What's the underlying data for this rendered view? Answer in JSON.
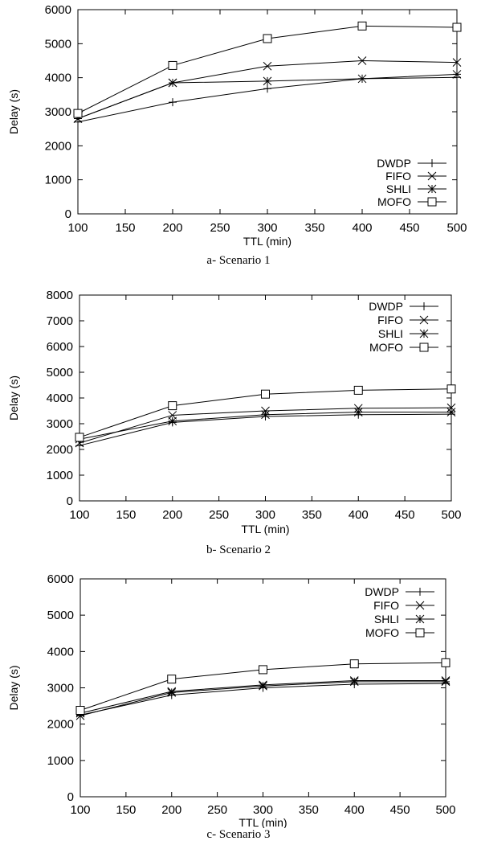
{
  "chart_data": [
    {
      "type": "line",
      "caption": "a- Scenario 1",
      "xlabel": "TTL (min)",
      "ylabel": "Delay (s)",
      "xlim": [
        100,
        500
      ],
      "ylim": [
        0,
        6000
      ],
      "xticks": [
        "100",
        "150",
        "200",
        "250",
        "300",
        "350",
        "400",
        "450",
        "500"
      ],
      "yticks": [
        "0",
        "1000",
        "2000",
        "3000",
        "4000",
        "5000",
        "6000"
      ],
      "legend_position": "bottom-right",
      "x": [
        100,
        200,
        300,
        400,
        500
      ],
      "series": [
        {
          "name": "DWDP",
          "marker": "plus",
          "values": [
            2700,
            3280,
            3680,
            3970,
            4010
          ]
        },
        {
          "name": "FIFO",
          "marker": "x",
          "values": [
            2800,
            3850,
            4340,
            4500,
            4450
          ]
        },
        {
          "name": "SHLI",
          "marker": "star",
          "values": [
            2800,
            3850,
            3900,
            3970,
            4100
          ]
        },
        {
          "name": "MOFO",
          "marker": "square",
          "values": [
            2950,
            4360,
            5150,
            5520,
            5480
          ]
        }
      ]
    },
    {
      "type": "line",
      "caption": "b- Scenario 2",
      "xlabel": "TTL (min)",
      "ylabel": "Delay (s)",
      "xlim": [
        100,
        500
      ],
      "ylim": [
        0,
        8000
      ],
      "xticks": [
        "100",
        "150",
        "200",
        "250",
        "300",
        "350",
        "400",
        "450",
        "500"
      ],
      "yticks": [
        "0",
        "1000",
        "2000",
        "3000",
        "4000",
        "5000",
        "6000",
        "7000",
        "8000"
      ],
      "legend_position": "top-right",
      "x": [
        100,
        200,
        300,
        400,
        500
      ],
      "series": [
        {
          "name": "DWDP",
          "marker": "plus",
          "values": [
            2150,
            3050,
            3280,
            3350,
            3370
          ]
        },
        {
          "name": "FIFO",
          "marker": "x",
          "values": [
            2250,
            3330,
            3500,
            3600,
            3620
          ]
        },
        {
          "name": "SHLI",
          "marker": "star",
          "values": [
            2400,
            3100,
            3350,
            3450,
            3450
          ]
        },
        {
          "name": "MOFO",
          "marker": "square",
          "values": [
            2470,
            3700,
            4150,
            4300,
            4350
          ]
        }
      ]
    },
    {
      "type": "line",
      "caption": "c- Scenario 3",
      "xlabel": "TTL (min)",
      "ylabel": "Delay (s)",
      "xlim": [
        100,
        500
      ],
      "ylim": [
        0,
        6000
      ],
      "xticks": [
        "100",
        "150",
        "200",
        "250",
        "300",
        "350",
        "400",
        "450",
        "500"
      ],
      "yticks": [
        "0",
        "1000",
        "2000",
        "3000",
        "4000",
        "5000",
        "6000"
      ],
      "legend_position": "top-right",
      "x": [
        100,
        200,
        300,
        400,
        500
      ],
      "series": [
        {
          "name": "DWDP",
          "marker": "plus",
          "values": [
            2250,
            2800,
            3000,
            3100,
            3120
          ]
        },
        {
          "name": "FIFO",
          "marker": "x",
          "values": [
            2300,
            2900,
            3080,
            3200,
            3200
          ]
        },
        {
          "name": "SHLI",
          "marker": "star",
          "values": [
            2230,
            2870,
            3050,
            3170,
            3170
          ]
        },
        {
          "name": "MOFO",
          "marker": "square",
          "values": [
            2380,
            3240,
            3500,
            3660,
            3690
          ]
        }
      ]
    }
  ]
}
